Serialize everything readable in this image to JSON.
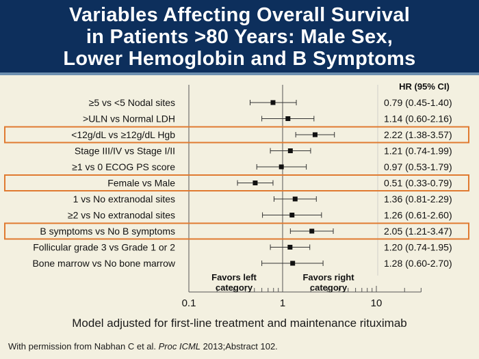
{
  "title": {
    "lines": [
      "Variables Affecting Overall Survival",
      "in Patients >80 Years: Male Sex,",
      "Lower Hemoglobin and B Symptoms"
    ]
  },
  "colors": {
    "title_band": "#0d2f5c",
    "background": "#f3f0e0",
    "highlight_box": "#e07a30",
    "marker": "#111111"
  },
  "chart_data": {
    "type": "forest",
    "x_scale": "log",
    "xlim": [
      0.1,
      30
    ],
    "x_ticks": [
      0.1,
      1,
      10
    ],
    "x_tick_labels": [
      "0.1",
      "1",
      "10"
    ],
    "reference_line": 1,
    "value_header": "HR (95% CI)",
    "rows": [
      {
        "label": "≥5 vs <5 Nodal sites",
        "hr": 0.79,
        "lo": 0.45,
        "hi": 1.4,
        "text": "0.79 (0.45-1.40)",
        "highlight": false
      },
      {
        "label": ">ULN vs Normal LDH",
        "hr": 1.14,
        "lo": 0.6,
        "hi": 2.16,
        "text": "1.14 (0.60-2.16)",
        "highlight": false
      },
      {
        "label": "<12g/dL vs ≥12g/dL Hgb",
        "hr": 2.22,
        "lo": 1.38,
        "hi": 3.57,
        "text": "2.22 (1.38-3.57)",
        "highlight": true
      },
      {
        "label": "Stage III/IV vs Stage I/II",
        "hr": 1.21,
        "lo": 0.74,
        "hi": 1.99,
        "text": "1.21 (0.74-1.99)",
        "highlight": false
      },
      {
        "label": "≥1 vs 0 ECOG PS score",
        "hr": 0.97,
        "lo": 0.53,
        "hi": 1.79,
        "text": "0.97 (0.53-1.79)",
        "highlight": false
      },
      {
        "label": "Female vs Male",
        "hr": 0.51,
        "lo": 0.33,
        "hi": 0.79,
        "text": "0.51 (0.33-0.79)",
        "highlight": true
      },
      {
        "label": "1 vs No extranodal sites",
        "hr": 1.36,
        "lo": 0.81,
        "hi": 2.29,
        "text": "1.36 (0.81-2.29)",
        "highlight": false
      },
      {
        "label": "≥2 vs No extranodal sites",
        "hr": 1.26,
        "lo": 0.61,
        "hi": 2.6,
        "text": "1.26 (0.61-2.60)",
        "highlight": false
      },
      {
        "label": "B symptoms vs No B symptoms",
        "hr": 2.05,
        "lo": 1.21,
        "hi": 3.47,
        "text": "2.05 (1.21-3.47)",
        "highlight": true
      },
      {
        "label": "Follicular grade 3 vs Grade 1 or 2",
        "hr": 1.2,
        "lo": 0.74,
        "hi": 1.95,
        "text": "1.20 (0.74-1.95)",
        "highlight": false
      },
      {
        "label": "Bone marrow vs No bone marrow",
        "hr": 1.28,
        "lo": 0.6,
        "hi": 2.7,
        "text": "1.28 (0.60-2.70)",
        "highlight": false
      }
    ],
    "annotations": {
      "favors_left": [
        "Favors left",
        "category"
      ],
      "favors_right": [
        "Favors right",
        "category"
      ]
    }
  },
  "caption": "Model adjusted for first-line treatment and maintenance rituximab",
  "source": {
    "prefix": "With permission from Nabhan C et al. ",
    "journal": "Proc ICML",
    "suffix": " 2013;Abstract 102."
  }
}
